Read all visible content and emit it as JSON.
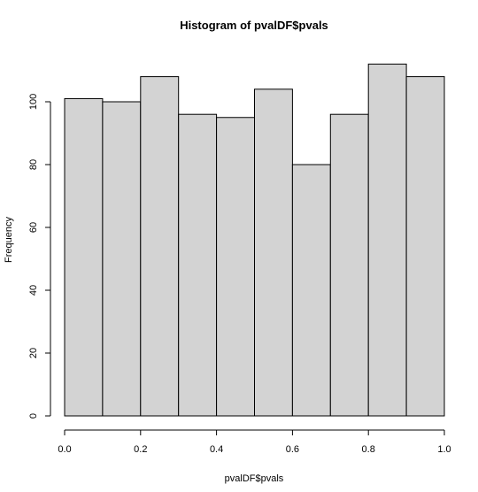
{
  "chart_data": {
    "type": "bar",
    "title": "Histogram of pvalDF$pvals",
    "xlabel": "pvalDF$pvals",
    "ylabel": "Frequency",
    "bins": [
      {
        "x0": 0.0,
        "x1": 0.1,
        "count": 101
      },
      {
        "x0": 0.1,
        "x1": 0.2,
        "count": 100
      },
      {
        "x0": 0.2,
        "x1": 0.3,
        "count": 108
      },
      {
        "x0": 0.3,
        "x1": 0.4,
        "count": 96
      },
      {
        "x0": 0.4,
        "x1": 0.5,
        "count": 95
      },
      {
        "x0": 0.5,
        "x1": 0.6,
        "count": 104
      },
      {
        "x0": 0.6,
        "x1": 0.7,
        "count": 80
      },
      {
        "x0": 0.7,
        "x1": 0.8,
        "count": 96
      },
      {
        "x0": 0.8,
        "x1": 0.9,
        "count": 112
      },
      {
        "x0": 0.9,
        "x1": 1.0,
        "count": 108
      }
    ],
    "xlim": [
      0,
      1
    ],
    "ylim": [
      0,
      112
    ],
    "xticks": [
      "0.0",
      "0.2",
      "0.4",
      "0.6",
      "0.8",
      "1.0"
    ],
    "yticks": [
      "0",
      "20",
      "40",
      "60",
      "80",
      "100"
    ],
    "bar_color": "#d3d3d3",
    "grid": false
  }
}
